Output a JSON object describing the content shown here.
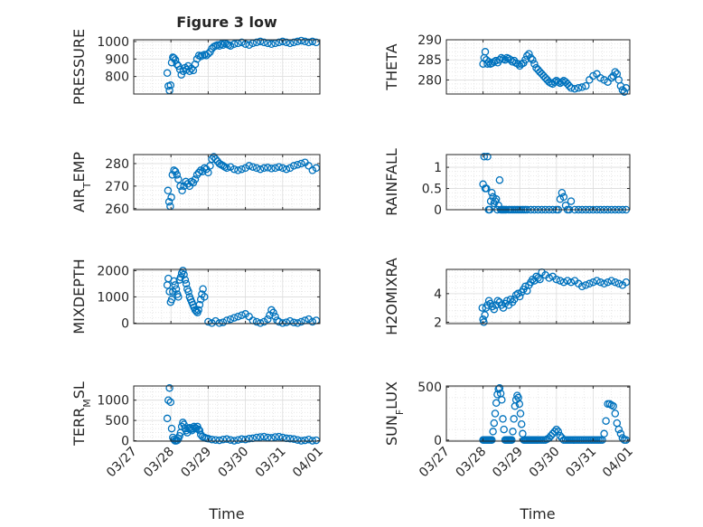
{
  "marker_color": "#0072BD",
  "chart_data": [
    {
      "type": "scatter",
      "title": "Figure 3 low",
      "ylabel": "PRESSURE",
      "ylabel_main": "PRESSURE",
      "ylabel_sub": "",
      "ylabel_tail": "",
      "ylim": [
        700,
        1010
      ],
      "yticks": [
        800,
        900,
        1000
      ],
      "xlim": [
        "03/27",
        "04/01"
      ],
      "x": [
        27.9,
        27.93,
        27.96,
        27.99,
        28.02,
        28.05,
        28.08,
        28.12,
        28.16,
        28.2,
        28.24,
        28.28,
        28.33,
        28.38,
        28.42,
        28.46,
        28.5,
        28.55,
        28.6,
        28.65,
        28.7,
        28.75,
        28.8,
        28.85,
        28.9,
        28.95,
        29.0,
        29.05,
        29.1,
        29.15,
        29.2,
        29.25,
        29.3,
        29.35,
        29.4,
        29.45,
        29.5,
        29.55,
        29.6,
        29.7,
        29.8,
        29.9,
        30.0,
        30.1,
        30.2,
        30.3,
        30.4,
        30.5,
        30.6,
        30.7,
        30.8,
        30.9,
        31.0,
        31.1,
        31.2,
        31.3,
        31.4,
        31.5,
        31.6,
        31.7,
        31.8,
        31.9
      ],
      "y": [
        820,
        745,
        720,
        750,
        880,
        910,
        905,
        895,
        870,
        860,
        840,
        810,
        830,
        850,
        840,
        860,
        830,
        845,
        835,
        870,
        900,
        920,
        915,
        920,
        925,
        920,
        930,
        940,
        960,
        970,
        975,
        980,
        975,
        985,
        980,
        990,
        985,
        980,
        975,
        985,
        990,
        995,
        985,
        980,
        990,
        995,
        1000,
        995,
        990,
        985,
        990,
        995,
        1000,
        995,
        990,
        995,
        1000,
        1005,
        1000,
        995,
        1000,
        995
      ]
    },
    {
      "type": "scatter",
      "title": "",
      "ylabel": "THETA",
      "ylabel_main": "THETA",
      "ylabel_sub": "",
      "ylabel_tail": "",
      "ylim": [
        276.5,
        290
      ],
      "yticks": [
        280,
        285,
        290
      ],
      "xlim": [
        "03/27",
        "04/01"
      ],
      "x": [
        28.0,
        28.03,
        28.06,
        28.09,
        28.12,
        28.16,
        28.2,
        28.25,
        28.3,
        28.35,
        28.4,
        28.45,
        28.5,
        28.55,
        28.6,
        28.65,
        28.7,
        28.75,
        28.8,
        28.85,
        28.9,
        28.95,
        29.0,
        29.05,
        29.1,
        29.15,
        29.2,
        29.25,
        29.3,
        29.35,
        29.4,
        29.45,
        29.5,
        29.55,
        29.6,
        29.65,
        29.7,
        29.75,
        29.8,
        29.85,
        29.9,
        29.95,
        30.0,
        30.05,
        30.1,
        30.15,
        30.2,
        30.25,
        30.3,
        30.35,
        30.4,
        30.5,
        30.6,
        30.7,
        30.8,
        30.9,
        31.0,
        31.1,
        31.2,
        31.3,
        31.4,
        31.5,
        31.55,
        31.6,
        31.65,
        31.7,
        31.75,
        31.8,
        31.85,
        31.9
      ],
      "y": [
        284,
        285.5,
        287,
        285,
        284,
        284.5,
        284,
        284.2,
        284.5,
        284.8,
        284.3,
        285,
        285.5,
        285.2,
        285,
        285.5,
        285.3,
        285,
        284.5,
        284.8,
        284.2,
        284,
        283.5,
        284,
        284.2,
        285,
        286,
        286.5,
        285.5,
        285,
        284,
        283,
        282.5,
        282,
        281.5,
        281,
        280.5,
        280,
        279.5,
        279.2,
        279,
        279.5,
        279.8,
        279.5,
        279.2,
        279.5,
        279.8,
        279.5,
        279,
        278.5,
        278,
        277.8,
        278,
        278.2,
        278.5,
        280,
        281,
        281.5,
        280.5,
        280,
        279.5,
        280.5,
        281,
        282,
        281.5,
        280,
        278.5,
        277.5,
        277,
        278
      ]
    },
    {
      "type": "scatter",
      "title": "",
      "ylabel": "AIR_TEMP",
      "ylabel_main": "AIR",
      "ylabel_sub": "T",
      "ylabel_tail": "EMP",
      "ylim": [
        259.5,
        284
      ],
      "yticks": [
        260,
        270,
        280
      ],
      "xlim": [
        "03/27",
        "04/01"
      ],
      "x": [
        27.92,
        27.95,
        27.98,
        28.01,
        28.04,
        28.08,
        28.12,
        28.16,
        28.2,
        28.25,
        28.3,
        28.35,
        28.4,
        28.45,
        28.5,
        28.55,
        28.6,
        28.65,
        28.7,
        28.75,
        28.8,
        28.85,
        28.9,
        28.95,
        29.0,
        29.05,
        29.1,
        29.15,
        29.2,
        29.25,
        29.3,
        29.35,
        29.4,
        29.45,
        29.5,
        29.6,
        29.7,
        29.8,
        29.9,
        30.0,
        30.1,
        30.2,
        30.3,
        30.4,
        30.5,
        30.6,
        30.7,
        30.8,
        30.9,
        31.0,
        31.1,
        31.2,
        31.3,
        31.4,
        31.5,
        31.6,
        31.7,
        31.8,
        31.9
      ],
      "y": [
        268,
        263,
        261,
        265,
        275,
        277,
        276.5,
        275,
        273,
        270,
        268,
        270,
        272,
        271,
        270,
        272,
        271.5,
        273,
        275,
        276,
        277,
        276.5,
        278,
        277.5,
        276,
        279,
        282,
        283,
        282,
        281,
        280,
        279.5,
        279,
        278.5,
        278,
        278.5,
        277.5,
        277,
        277.5,
        278,
        279,
        278.5,
        278,
        277.5,
        278,
        278.2,
        277.8,
        278,
        278.5,
        278,
        277.5,
        278,
        279,
        279.5,
        280,
        280.5,
        279,
        277,
        278
      ]
    },
    {
      "type": "scatter",
      "title": "",
      "ylabel": "RAINFALL",
      "ylabel_main": "RAINFALL",
      "ylabel_sub": "",
      "ylabel_tail": "",
      "ylim": [
        0,
        1.3
      ],
      "yticks": [
        0,
        0.5,
        1
      ],
      "xlim": [
        "03/27",
        "04/01"
      ],
      "x": [
        28.0,
        28.03,
        28.06,
        28.09,
        28.12,
        28.15,
        28.18,
        28.21,
        28.24,
        28.27,
        28.3,
        28.33,
        28.36,
        28.39,
        28.42,
        28.45,
        28.48,
        28.51,
        28.54,
        28.57,
        28.6,
        28.63,
        28.7,
        28.75,
        28.8,
        28.85,
        28.9,
        28.95,
        29.0,
        29.05,
        29.1,
        29.15,
        29.2,
        29.3,
        29.4,
        29.5,
        29.6,
        29.7,
        29.8,
        29.9,
        30.0,
        30.05,
        30.1,
        30.15,
        30.2,
        30.25,
        30.3,
        30.35,
        30.4,
        30.5,
        30.6,
        30.7,
        30.8,
        30.9,
        31.0,
        31.1,
        31.2,
        31.3,
        31.4,
        31.5,
        31.6,
        31.7,
        31.8,
        31.9
      ],
      "y": [
        0.6,
        1.25,
        0.5,
        0.5,
        1.25,
        0,
        0,
        0.2,
        0.4,
        0.3,
        0.15,
        0.2,
        0.25,
        0,
        0.1,
        0.7,
        0,
        0,
        0,
        0,
        0,
        0,
        0,
        0,
        0,
        0,
        0,
        0,
        0,
        0,
        0,
        0,
        0,
        0,
        0,
        0,
        0,
        0,
        0,
        0,
        0,
        0,
        0.25,
        0.4,
        0.3,
        0.1,
        0,
        0,
        0.2,
        0,
        0,
        0,
        0,
        0,
        0,
        0,
        0,
        0,
        0,
        0,
        0,
        0,
        0,
        0
      ]
    },
    {
      "type": "scatter",
      "title": "",
      "ylabel": "MIXDEPTH",
      "ylabel_main": "MIXDEPTH",
      "ylabel_sub": "",
      "ylabel_tail": "",
      "ylim": [
        -20,
        2050
      ],
      "yticks": [
        0,
        1000,
        2000
      ],
      "xlim": [
        "03/27",
        "04/01"
      ],
      "x": [
        27.9,
        27.93,
        27.96,
        27.99,
        28.02,
        28.05,
        28.08,
        28.11,
        28.14,
        28.17,
        28.2,
        28.23,
        28.26,
        28.29,
        28.32,
        28.35,
        28.38,
        28.41,
        28.44,
        28.47,
        28.5,
        28.53,
        28.56,
        28.59,
        28.62,
        28.65,
        28.68,
        28.71,
        28.74,
        28.77,
        28.8,
        28.83,
        28.86,
        28.9,
        29.0,
        29.1,
        29.2,
        29.3,
        29.4,
        29.5,
        29.6,
        29.7,
        29.8,
        29.9,
        30.0,
        30.1,
        30.2,
        30.3,
        30.4,
        30.5,
        30.6,
        30.65,
        30.7,
        30.75,
        30.8,
        30.85,
        30.9,
        31.0,
        31.1,
        31.2,
        31.3,
        31.4,
        31.5,
        31.6,
        31.7,
        31.8,
        31.9
      ],
      "y": [
        1450,
        1700,
        1200,
        800,
        900,
        1200,
        1600,
        1450,
        1300,
        1100,
        1000,
        1650,
        1750,
        1900,
        2000,
        1850,
        1650,
        1500,
        1300,
        1200,
        1000,
        900,
        800,
        700,
        600,
        500,
        450,
        400,
        500,
        700,
        900,
        1100,
        1300,
        1000,
        50,
        0,
        80,
        0,
        30,
        100,
        150,
        200,
        250,
        300,
        350,
        250,
        100,
        50,
        0,
        50,
        150,
        300,
        500,
        400,
        250,
        100,
        50,
        0,
        30,
        80,
        20,
        0,
        50,
        100,
        150,
        50,
        100
      ]
    },
    {
      "type": "scatter",
      "title": "",
      "ylabel": "H2OMIXRA",
      "ylabel_main": "H2OMIXRA",
      "ylabel_sub": "",
      "ylabel_tail": "",
      "ylim": [
        1.9,
        5.7
      ],
      "yticks": [
        2,
        4
      ],
      "xlim": [
        "03/27",
        "04/01"
      ],
      "x": [
        27.98,
        28.0,
        28.02,
        28.05,
        28.08,
        28.12,
        28.16,
        28.2,
        28.25,
        28.3,
        28.35,
        28.4,
        28.45,
        28.5,
        28.55,
        28.6,
        28.65,
        28.7,
        28.75,
        28.8,
        28.85,
        28.9,
        28.95,
        29.0,
        29.05,
        29.1,
        29.15,
        29.2,
        29.25,
        29.3,
        29.35,
        29.4,
        29.45,
        29.5,
        29.55,
        29.6,
        29.7,
        29.8,
        29.9,
        30.0,
        30.1,
        30.2,
        30.3,
        30.4,
        30.5,
        30.6,
        30.7,
        30.8,
        30.9,
        31.0,
        31.1,
        31.2,
        31.3,
        31.4,
        31.5,
        31.6,
        31.7,
        31.8,
        31.9
      ],
      "y": [
        3,
        2.2,
        2,
        2.5,
        3,
        3.2,
        3.5,
        3.3,
        3.1,
        2.9,
        3.2,
        3.5,
        3.4,
        3.2,
        3,
        3.3,
        3.5,
        3.2,
        3.6,
        3.4,
        3.6,
        3.9,
        4,
        3.8,
        4.1,
        4.3,
        4.5,
        4.2,
        4.6,
        4.8,
        5,
        4.9,
        5.2,
        5.1,
        5,
        5.5,
        5.3,
        5.1,
        5.2,
        5,
        4.9,
        4.8,
        4.9,
        4.8,
        4.9,
        4.7,
        4.5,
        4.6,
        4.7,
        4.8,
        4.9,
        4.8,
        4.7,
        4.8,
        4.9,
        4.8,
        4.7,
        4.6,
        4.8
      ]
    },
    {
      "type": "scatter",
      "title": "",
      "ylabel": "TERR_MSL",
      "ylabel_main": "TERR",
      "ylabel_sub": "M",
      "ylabel_tail": "SL",
      "ylim": [
        -10,
        1350
      ],
      "yticks": [
        0,
        500,
        1000
      ],
      "xlim": [
        "03/27",
        "04/01"
      ],
      "x": [
        27.9,
        27.93,
        27.96,
        27.99,
        28.02,
        28.05,
        28.08,
        28.11,
        28.14,
        28.17,
        28.2,
        28.23,
        28.26,
        28.29,
        28.32,
        28.35,
        28.38,
        28.41,
        28.44,
        28.47,
        28.5,
        28.53,
        28.56,
        28.59,
        28.62,
        28.65,
        28.68,
        28.71,
        28.74,
        28.77,
        28.8,
        28.85,
        28.9,
        28.95,
        29.0,
        29.1,
        29.2,
        29.3,
        29.4,
        29.5,
        29.6,
        29.7,
        29.8,
        29.9,
        30.0,
        30.1,
        30.2,
        30.3,
        30.4,
        30.5,
        30.6,
        30.7,
        30.8,
        30.9,
        31.0,
        31.1,
        31.2,
        31.3,
        31.4,
        31.5,
        31.6,
        31.7,
        31.8,
        31.9
      ],
      "y": [
        550,
        1000,
        1300,
        950,
        300,
        80,
        30,
        0,
        0,
        10,
        50,
        120,
        200,
        350,
        450,
        400,
        300,
        250,
        200,
        300,
        320,
        280,
        250,
        300,
        350,
        320,
        300,
        350,
        280,
        250,
        150,
        100,
        80,
        60,
        50,
        30,
        20,
        10,
        30,
        40,
        20,
        0,
        20,
        40,
        30,
        50,
        60,
        80,
        90,
        100,
        80,
        70,
        90,
        100,
        80,
        60,
        50,
        40,
        20,
        0,
        10,
        30,
        0,
        10
      ]
    },
    {
      "type": "scatter",
      "title": "",
      "ylabel": "SUN_FLUX",
      "ylabel_main": "SUN",
      "ylabel_sub": "F",
      "ylabel_tail": "LUX",
      "ylim": [
        -10,
        510
      ],
      "yticks": [
        0,
        500
      ],
      "xlim": [
        "03/27",
        "04/01"
      ],
      "x": [
        28.0,
        28.03,
        28.06,
        28.09,
        28.12,
        28.15,
        28.18,
        28.21,
        28.24,
        28.27,
        28.3,
        28.33,
        28.36,
        28.39,
        28.42,
        28.45,
        28.48,
        28.51,
        28.54,
        28.57,
        28.6,
        28.63,
        28.66,
        28.69,
        28.72,
        28.75,
        28.78,
        28.81,
        28.84,
        28.87,
        28.9,
        28.93,
        28.96,
        28.99,
        29.02,
        29.05,
        29.08,
        29.11,
        29.14,
        29.17,
        29.2,
        29.23,
        29.26,
        29.29,
        29.32,
        29.35,
        29.38,
        29.41,
        29.44,
        29.47,
        29.5,
        29.55,
        29.6,
        29.65,
        29.7,
        29.75,
        29.8,
        29.85,
        29.9,
        29.95,
        30.0,
        30.05,
        30.1,
        30.15,
        30.2,
        30.25,
        30.3,
        30.35,
        30.4,
        30.45,
        30.5,
        30.55,
        30.6,
        30.65,
        30.7,
        30.75,
        30.8,
        30.85,
        30.9,
        30.95,
        31.0,
        31.05,
        31.1,
        31.15,
        31.2,
        31.25,
        31.3,
        31.35,
        31.4,
        31.45,
        31.5,
        31.55,
        31.6,
        31.65,
        31.7,
        31.75,
        31.8,
        31.85,
        31.9
      ],
      "y": [
        0,
        0,
        0,
        0,
        0,
        0,
        0,
        0,
        0,
        80,
        160,
        250,
        350,
        430,
        480,
        490,
        440,
        380,
        200,
        100,
        0,
        0,
        0,
        0,
        0,
        0,
        0,
        80,
        200,
        320,
        380,
        420,
        400,
        340,
        250,
        150,
        60,
        0,
        0,
        0,
        0,
        0,
        0,
        0,
        0,
        0,
        0,
        0,
        0,
        0,
        0,
        0,
        0,
        0,
        0,
        10,
        20,
        40,
        60,
        80,
        100,
        80,
        40,
        20,
        0,
        0,
        0,
        0,
        0,
        0,
        0,
        0,
        0,
        0,
        0,
        0,
        0,
        0,
        0,
        0,
        0,
        0,
        0,
        0,
        0,
        0,
        60,
        180,
        340,
        340,
        330,
        320,
        250,
        160,
        100,
        60,
        20,
        0,
        0
      ]
    }
  ],
  "x_tick_labels": [
    "03/27",
    "03/28",
    "03/29",
    "03/30",
    "03/31",
    "04/01"
  ],
  "x_tick_days": [
    27,
    28,
    29,
    30,
    31,
    32
  ],
  "xlabel_left": "Time",
  "xlabel_right": "Time"
}
